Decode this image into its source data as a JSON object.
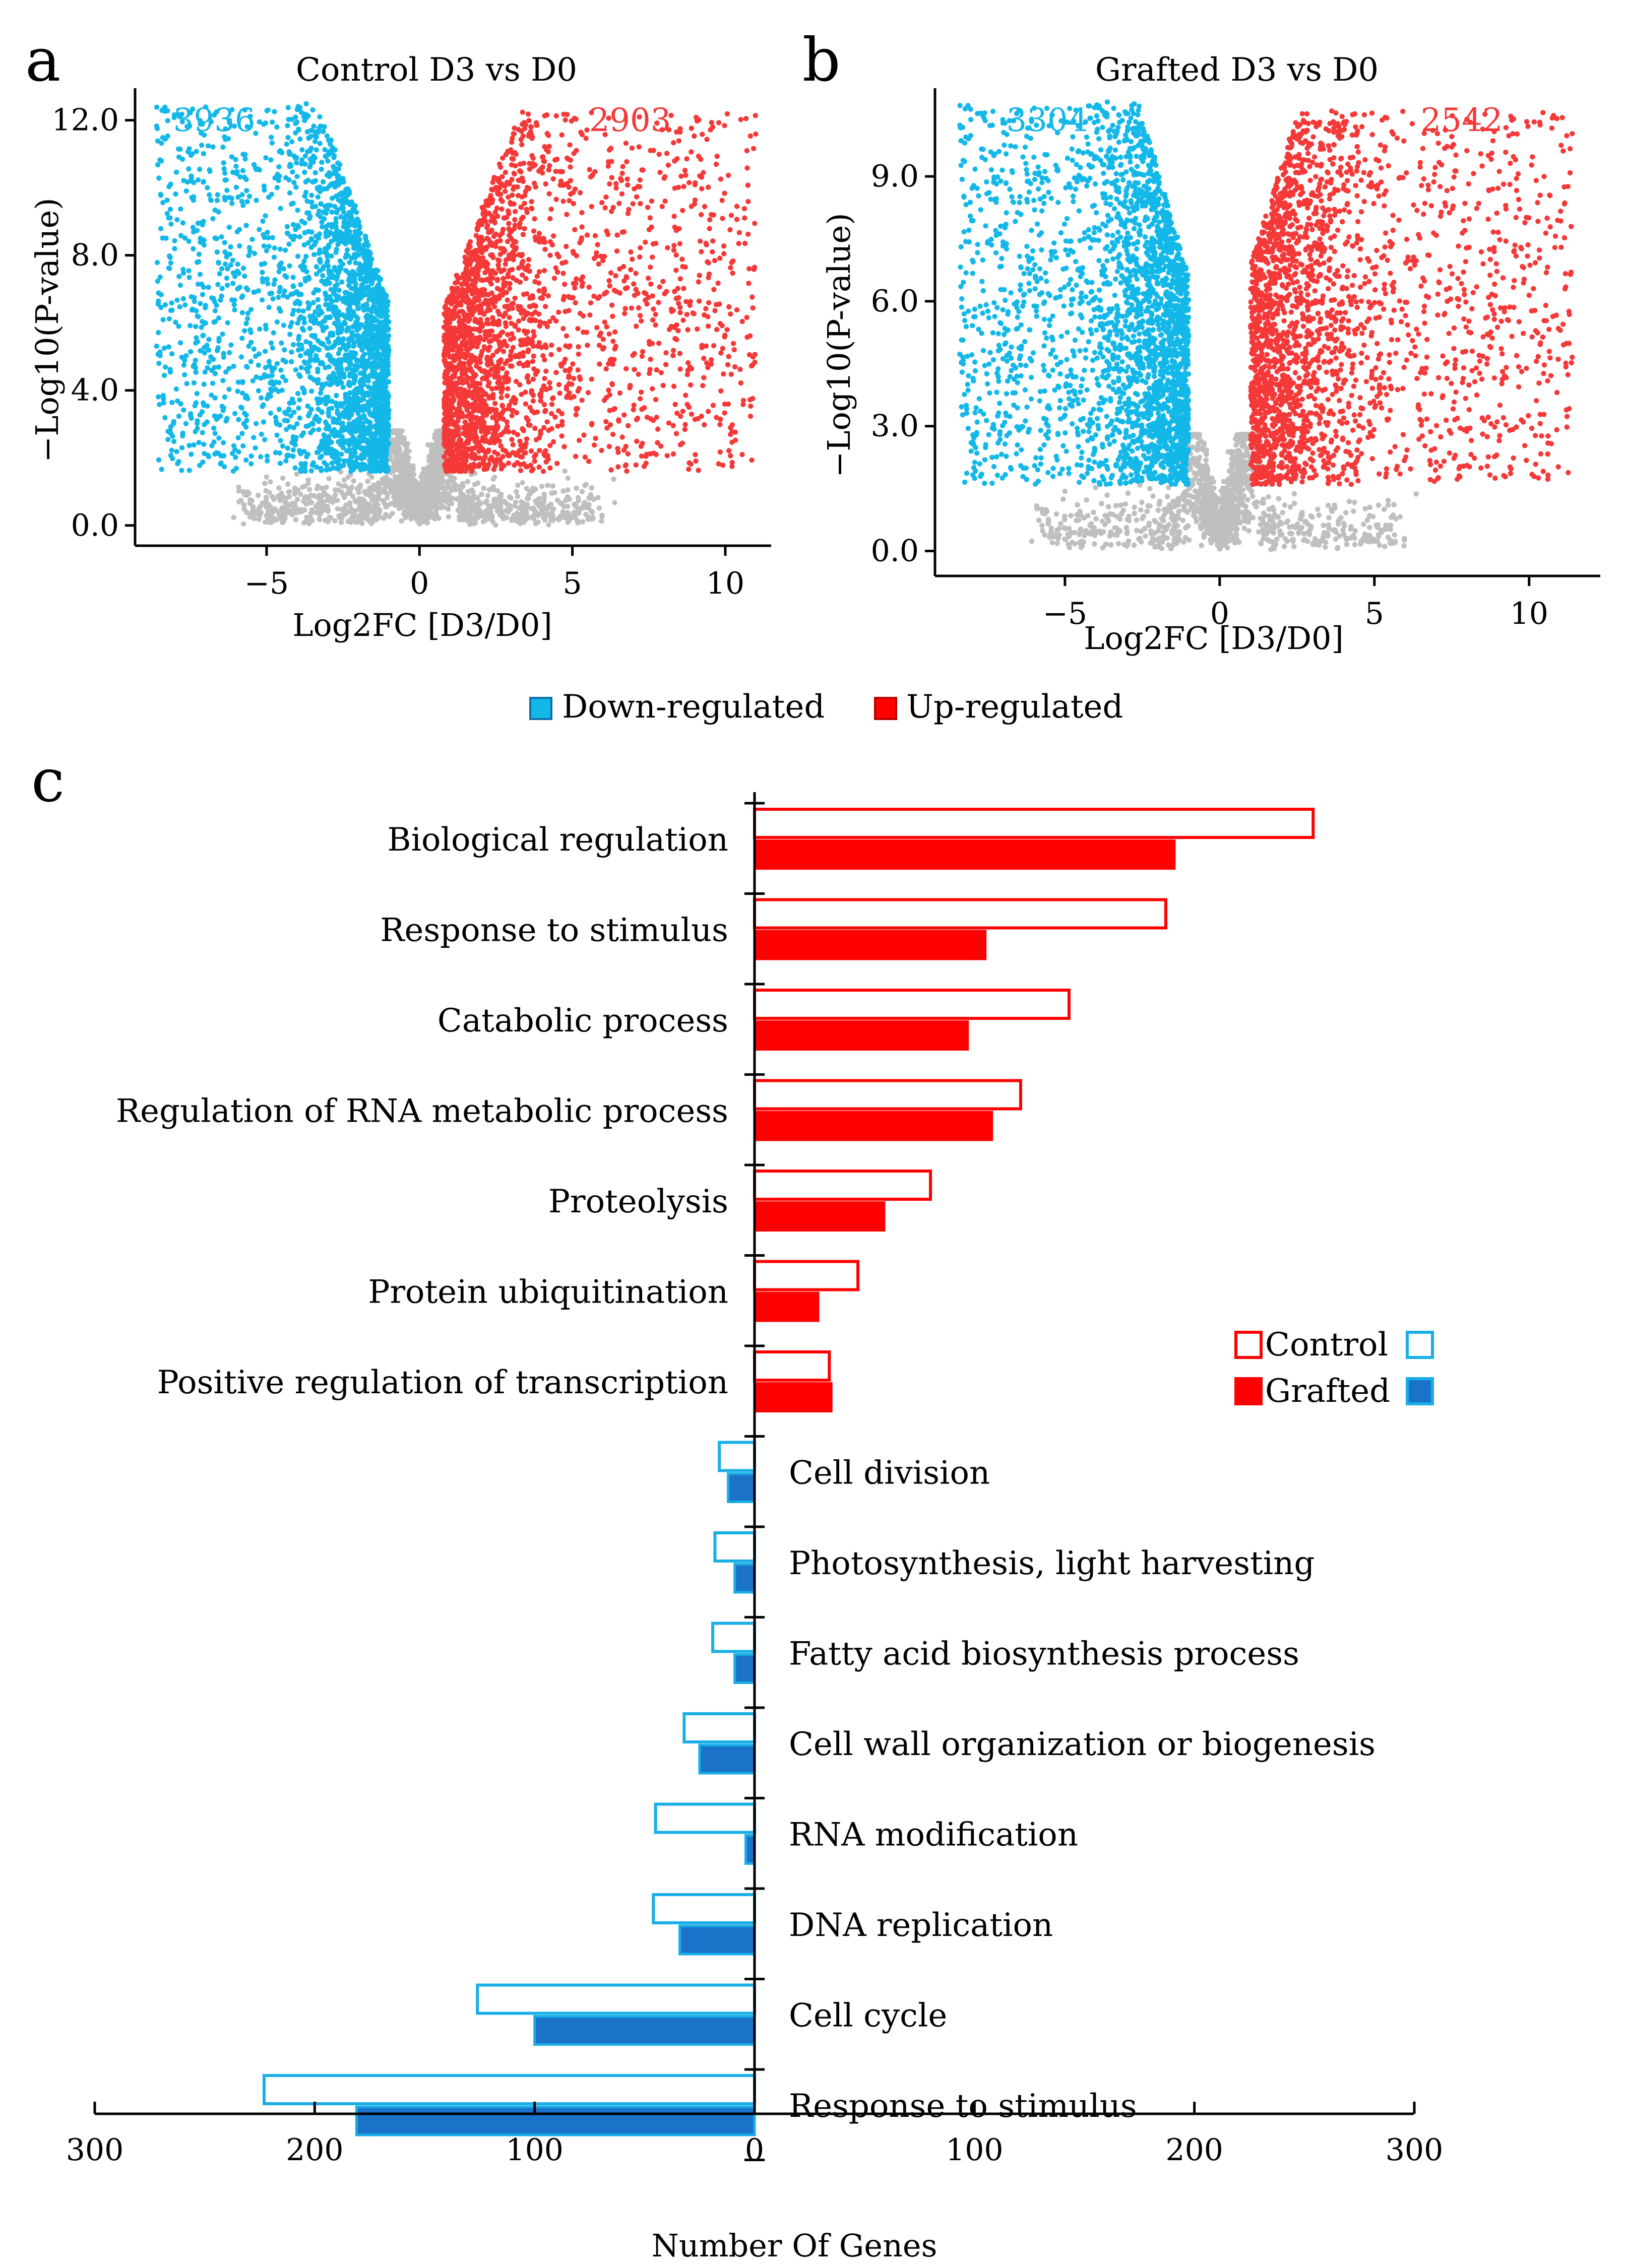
{
  "colors": {
    "down": "#14b8e8",
    "up": "#f53838",
    "nonsig": "#bfbfbf",
    "up_bar": "#ff0000",
    "down_fill": "#1a73c9",
    "down_edge": "#19aee6",
    "axis": "#000000"
  },
  "panel_labels": {
    "a": "a",
    "b": "b",
    "c": "c"
  },
  "legend_top": {
    "down": "Down-regulated",
    "up": "Up-regulated"
  },
  "legend_c": {
    "control": "Control",
    "grafted": "Grafted"
  },
  "chart_data": [
    {
      "type": "scatter",
      "id": "a",
      "title": "Control D3 vs D0",
      "xlabel": "Log2FC [D3/D0]",
      "ylabel": "−Log10(P-value)",
      "xlim": [
        -9.3,
        11.5
      ],
      "ylim": [
        -0.6,
        12.8
      ],
      "xticks": [
        -5,
        0,
        5,
        10
      ],
      "xtick_labels": [
        "−5",
        "0",
        "5",
        "10"
      ],
      "yticks": [
        0,
        4,
        8,
        12
      ],
      "ytick_labels": [
        "0.0",
        "4.0",
        "8.0",
        "12.0"
      ],
      "down_count": "3936",
      "up_count": "2903",
      "threshold_p": 1.6,
      "down_fc": -1.0,
      "up_fc": 0.8,
      "ymax_point": 12.5,
      "n_down": 3936,
      "n_up": 2903,
      "xmin_point": -8.6,
      "xmax_point": 11.0
    },
    {
      "type": "scatter",
      "id": "b",
      "title": "Grafted D3 vs D0",
      "xlabel": "Log2FC [D3/D0]",
      "ylabel": "−Log10(P-value)",
      "xlim": [
        -9.2,
        12.3
      ],
      "ylim": [
        -0.6,
        11.0
      ],
      "xticks": [
        -5,
        0,
        5,
        10
      ],
      "xtick_labels": [
        "−5",
        "0",
        "5",
        "10"
      ],
      "yticks": [
        0,
        3,
        6,
        9
      ],
      "ytick_labels": [
        "0.0",
        "3.0",
        "6.0",
        "9.0"
      ],
      "down_count": "3304",
      "up_count": "2542",
      "threshold_p": 1.6,
      "down_fc": -1.0,
      "up_fc": 1.0,
      "ymax_point": 10.8,
      "n_down": 3304,
      "n_up": 2542,
      "xmin_point": -8.4,
      "xmax_point": 11.4
    },
    {
      "type": "bar",
      "id": "c",
      "orientation": "horizontal",
      "xlabel": "Number Of Genes",
      "xlim": [
        -300,
        300
      ],
      "xticks": [
        -300,
        -200,
        -100,
        0,
        100,
        200,
        300
      ],
      "xtick_labels": [
        "300",
        "200",
        "100",
        "0",
        "100",
        "200",
        "300"
      ],
      "categories": [
        "Biological regulation",
        "Response to stimulus",
        "Catabolic process",
        "Regulation of RNA metabolic process",
        "Proteolysis",
        "Protein ubiquitination",
        "Positive regulation of transcription",
        "Cell division",
        "Photosynthesis, light harvesting",
        "Fatty acid biosynthesis process",
        "Cell wall organization or biogenesis",
        "RNA modification",
        "DNA replication",
        "Cell cycle",
        "Response to stimulus"
      ],
      "direction": [
        "up",
        "up",
        "up",
        "up",
        "up",
        "up",
        "up",
        "down",
        "down",
        "down",
        "down",
        "down",
        "down",
        "down",
        "down"
      ],
      "series": [
        {
          "name": "Control",
          "values": [
            254,
            187,
            143,
            121,
            80,
            47,
            34,
            16,
            18,
            19,
            32,
            45,
            46,
            126,
            223
          ]
        },
        {
          "name": "Grafted",
          "values": [
            191,
            105,
            97,
            108,
            59,
            29,
            35,
            12,
            9,
            9,
            25,
            4,
            34,
            100,
            181
          ]
        }
      ]
    }
  ]
}
